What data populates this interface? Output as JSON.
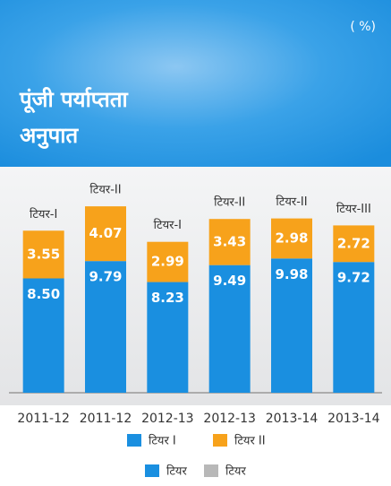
{
  "chart_data": {
    "type": "stacked_bar",
    "title_lines": [
      "पूंजी पर्याप्तता",
      "अनुपात"
    ],
    "unit_label": "( %)",
    "categories": [
      "2011-12",
      "2011-12",
      "2012-13",
      "2012-13",
      "2013-14",
      "2013-14"
    ],
    "bar_labels": [
      "टियर-I",
      "टियर-II",
      "टियर-I",
      "टियर-II",
      "टियर-II",
      "टियर-III"
    ],
    "series": [
      {
        "name": "टियर I",
        "color": "#1a8fe0",
        "values": [
          8.5,
          9.79,
          8.23,
          9.49,
          9.98,
          9.72
        ],
        "value_labels": [
          "8.50",
          "9.79",
          "8.23",
          "9.49",
          "9.98",
          "9.72"
        ]
      },
      {
        "name": "टियर II",
        "color": "#f7a21b",
        "values": [
          3.55,
          4.07,
          2.99,
          3.43,
          2.98,
          2.72
        ],
        "value_labels": [
          "3.55",
          "4.07",
          "2.99",
          "3.43",
          "2.98",
          "2.72"
        ]
      }
    ],
    "extra_legend": [
      {
        "name": "टियर",
        "color": "#1a8fe0"
      },
      {
        "name": "टियर",
        "color": "#b8b8b8"
      }
    ],
    "ylim": [
      0,
      16
    ]
  }
}
